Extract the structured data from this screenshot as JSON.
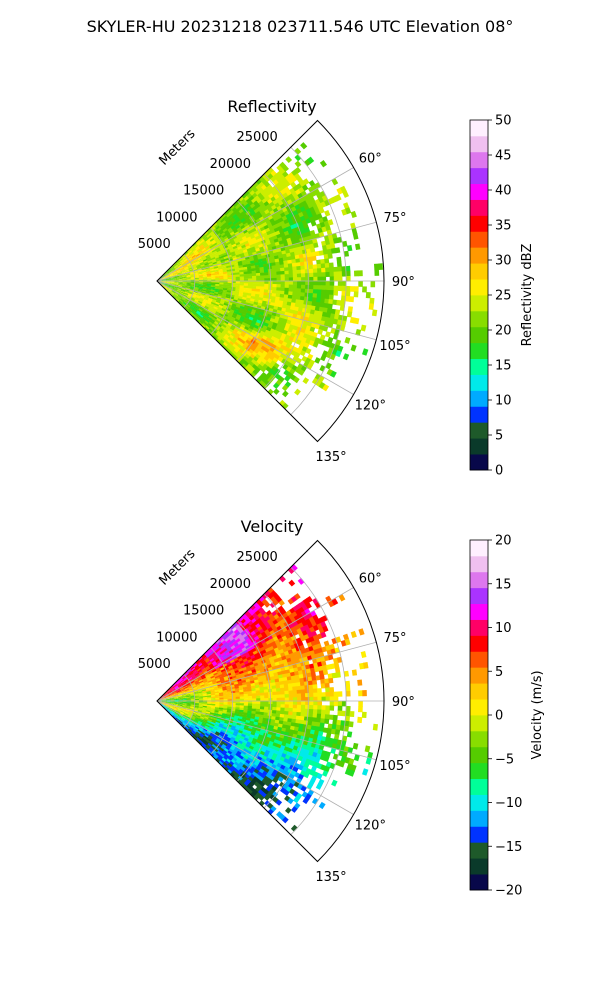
{
  "figure": {
    "title": "SKYLER-HU  20231218  023711.546 UTC Elevation 08°"
  },
  "chart_data": [
    {
      "type": "heatmap",
      "projection": "polar-sector",
      "title": "Reflectivity",
      "radial_axis_label": "Meters",
      "radial_ticks": [
        "5000",
        "10000",
        "15000",
        "20000",
        "25000"
      ],
      "angle_ticks": [
        "60°",
        "75°",
        "90°",
        "105°",
        "120°",
        "135°"
      ],
      "azimuth_range_deg": [
        45,
        135
      ],
      "range_max_m": 30000,
      "grid": true,
      "colorbar": {
        "label": "Reflectivity dBZ",
        "range": [
          0,
          50
        ],
        "ticks": [
          "0",
          "5",
          "10",
          "15",
          "20",
          "25",
          "30",
          "35",
          "40",
          "45",
          "50"
        ],
        "colors": [
          "#08084a",
          "#0a3a2a",
          "#1e5a2a",
          "#0033ff",
          "#00aaff",
          "#00eaea",
          "#00ff99",
          "#22dd22",
          "#55cc00",
          "#88dd00",
          "#ccee00",
          "#ffee00",
          "#ffcc00",
          "#ff9900",
          "#ff5500",
          "#ff0000",
          "#ff0066",
          "#ff00ff",
          "#aa33ff",
          "#dd77ee",
          "#f0c0f0",
          "#fff0ff"
        ]
      }
    },
    {
      "type": "heatmap",
      "projection": "polar-sector",
      "title": "Velocity",
      "radial_axis_label": "Meters",
      "radial_ticks": [
        "5000",
        "10000",
        "15000",
        "20000",
        "25000"
      ],
      "angle_ticks": [
        "60°",
        "75°",
        "90°",
        "105°",
        "120°",
        "135°"
      ],
      "azimuth_range_deg": [
        45,
        135
      ],
      "range_max_m": 30000,
      "grid": true,
      "colorbar": {
        "label": "Velocity (m/s)",
        "range": [
          -20,
          20
        ],
        "ticks": [
          "−20",
          "−15",
          "−10",
          "−5",
          "0",
          "5",
          "10",
          "15",
          "20"
        ],
        "colors": [
          "#08084a",
          "#0a3a2a",
          "#1e5a2a",
          "#0033ff",
          "#00aaff",
          "#00eaea",
          "#00ff99",
          "#22dd22",
          "#55cc00",
          "#88dd00",
          "#ccee00",
          "#ffee00",
          "#ffcc00",
          "#ff9900",
          "#ff5500",
          "#ff0000",
          "#ff0066",
          "#ff00ff",
          "#aa33ff",
          "#dd77ee",
          "#f0c0f0",
          "#fff0ff"
        ]
      }
    }
  ]
}
